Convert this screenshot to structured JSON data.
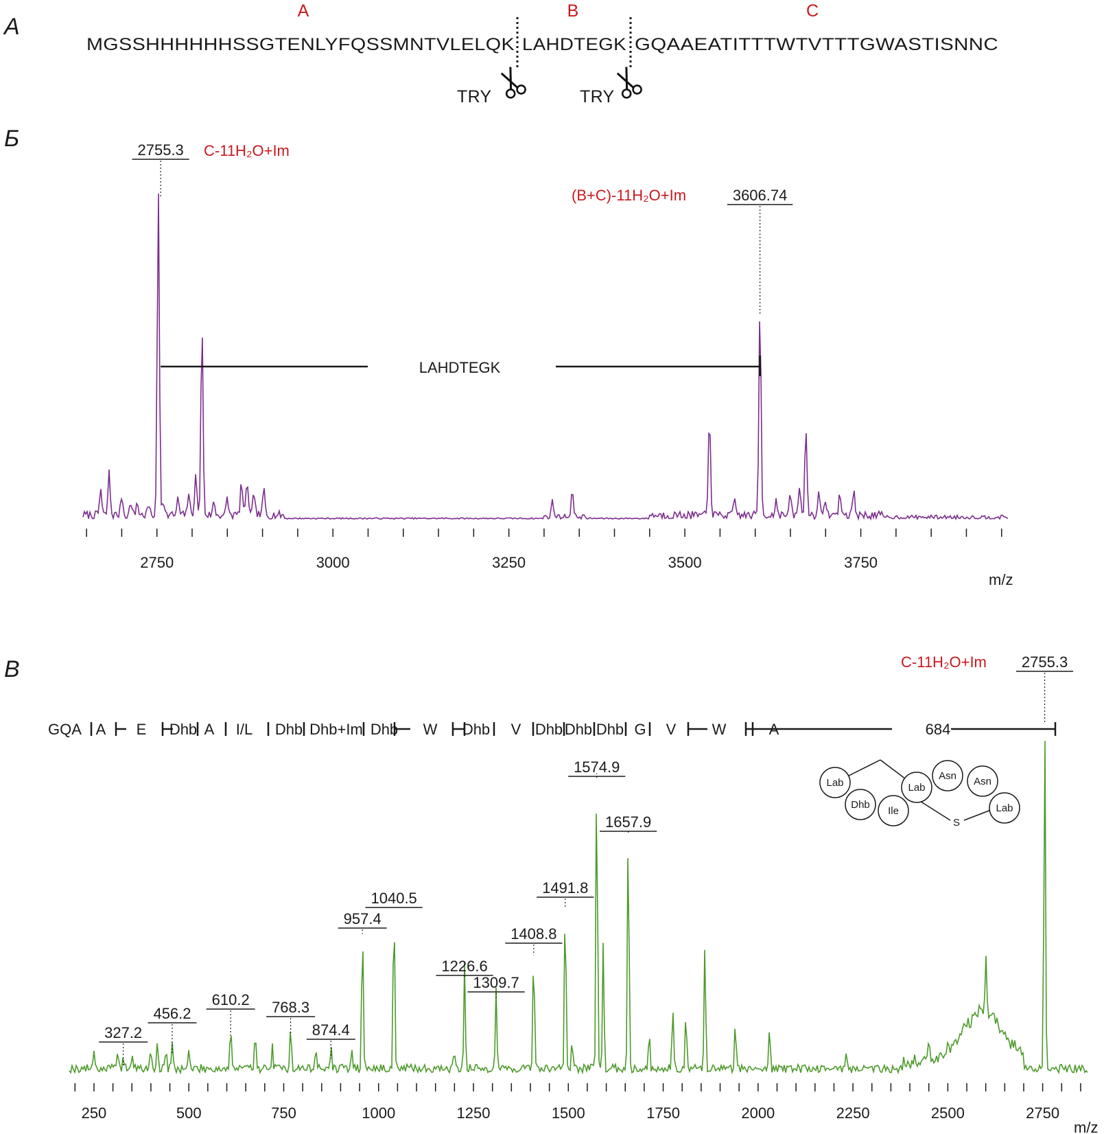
{
  "panel_a": {
    "letter": "A",
    "sequence": "MGSSHHHHHHSSGTENLYFQSSMNTVLELQK",
    "sequence_b": "LAHDTEGK",
    "sequence_c": "GQAAEATITTTWTVTTTGWASTISNNC",
    "region_a": "A",
    "region_b": "B",
    "region_c": "C",
    "cut_label_1": "TRY",
    "cut_label_2": "TRY"
  },
  "chart_data": [
    {
      "panel": "Б",
      "type": "line",
      "title": "",
      "xlabel": "m/z",
      "ylabel": "",
      "xlim": [
        2645,
        3960
      ],
      "ylim": [
        0,
        100
      ],
      "x_ticks": [
        2750,
        3000,
        3250,
        3500,
        3750
      ],
      "series": [
        {
          "color": "#7b2d8e",
          "peaks": [
            {
              "x": 2670,
              "y": 8
            },
            {
              "x": 2682,
              "y": 13
            },
            {
              "x": 2700,
              "y": 6
            },
            {
              "x": 2713,
              "y": 4
            },
            {
              "x": 2722,
              "y": 4
            },
            {
              "x": 2738,
              "y": 3
            },
            {
              "x": 2752,
              "y": 100
            },
            {
              "x": 2759,
              "y": 5
            },
            {
              "x": 2780,
              "y": 5
            },
            {
              "x": 2795,
              "y": 7
            },
            {
              "x": 2805,
              "y": 13
            },
            {
              "x": 2814,
              "y": 58
            },
            {
              "x": 2831,
              "y": 4
            },
            {
              "x": 2850,
              "y": 5
            },
            {
              "x": 2870,
              "y": 10
            },
            {
              "x": 2878,
              "y": 11
            },
            {
              "x": 2888,
              "y": 7
            },
            {
              "x": 2902,
              "y": 8
            },
            {
              "x": 3312,
              "y": 5
            },
            {
              "x": 3340,
              "y": 8
            },
            {
              "x": 3535,
              "y": 31
            },
            {
              "x": 3571,
              "y": 5
            },
            {
              "x": 3606.74,
              "y": 64
            },
            {
              "x": 3630,
              "y": 5
            },
            {
              "x": 3650,
              "y": 6
            },
            {
              "x": 3663,
              "y": 9
            },
            {
              "x": 3672,
              "y": 27
            },
            {
              "x": 3690,
              "y": 7
            },
            {
              "x": 3700,
              "y": 5
            },
            {
              "x": 3720,
              "y": 7
            },
            {
              "x": 3740,
              "y": 8
            }
          ]
        }
      ],
      "labeled_peaks": [
        {
          "x": 2755.3,
          "y": 100,
          "label": "2755.3"
        },
        {
          "x": 3606.74,
          "y": 64,
          "label": "3606.74"
        }
      ],
      "annotations": [
        {
          "text": "C-11H₂O+Im"
        },
        {
          "text": "(B+C)-11H₂O+Im"
        },
        {
          "text": "LAHDTEGK",
          "from": 2755.3,
          "to": 3606.74
        }
      ]
    },
    {
      "panel": "В",
      "type": "line",
      "title": "",
      "xlabel": "m/z",
      "ylabel": "",
      "xlim": [
        185,
        2870
      ],
      "ylim": [
        0,
        100
      ],
      "x_ticks": [
        250,
        500,
        750,
        1000,
        1250,
        1500,
        1750,
        2000,
        2250,
        2500,
        2750
      ],
      "series": [
        {
          "color": "#4c9a2a",
          "peaks": [
            {
              "x": 250,
              "y": 6
            },
            {
              "x": 312,
              "y": 5
            },
            {
              "x": 327.2,
              "y": 4
            },
            {
              "x": 350,
              "y": 4
            },
            {
              "x": 400,
              "y": 5
            },
            {
              "x": 417,
              "y": 7
            },
            {
              "x": 440,
              "y": 5
            },
            {
              "x": 456.2,
              "y": 7
            },
            {
              "x": 500,
              "y": 5
            },
            {
              "x": 610.2,
              "y": 12
            },
            {
              "x": 675,
              "y": 12
            },
            {
              "x": 720,
              "y": 6
            },
            {
              "x": 768.3,
              "y": 13
            },
            {
              "x": 835,
              "y": 6
            },
            {
              "x": 874.4,
              "y": 6
            },
            {
              "x": 930,
              "y": 6
            },
            {
              "x": 957.4,
              "y": 41
            },
            {
              "x": 1040.5,
              "y": 48
            },
            {
              "x": 1200,
              "y": 5
            },
            {
              "x": 1226.6,
              "y": 30
            },
            {
              "x": 1309.7,
              "y": 23
            },
            {
              "x": 1408.8,
              "y": 35
            },
            {
              "x": 1491.8,
              "y": 48
            },
            {
              "x": 1510,
              "y": 9
            },
            {
              "x": 1574.9,
              "y": 86
            },
            {
              "x": 1592,
              "y": 35
            },
            {
              "x": 1657.9,
              "y": 70
            },
            {
              "x": 1713,
              "y": 10
            },
            {
              "x": 1775,
              "y": 19
            },
            {
              "x": 1810,
              "y": 17
            },
            {
              "x": 1860,
              "y": 35
            },
            {
              "x": 1940,
              "y": 14
            },
            {
              "x": 2030,
              "y": 12
            },
            {
              "x": 2233,
              "y": 5
            },
            {
              "x": 2450,
              "y": 7
            },
            {
              "x": 2600,
              "y": 17
            },
            {
              "x": 2755.3,
              "y": 100
            }
          ]
        }
      ],
      "labeled_peaks": [
        {
          "x": 327.2,
          "y": 4,
          "label": "327.2"
        },
        {
          "x": 456.2,
          "y": 7,
          "label": "456.2"
        },
        {
          "x": 610.2,
          "y": 12,
          "label": "610.2"
        },
        {
          "x": 768.3,
          "y": 13,
          "label": "768.3"
        },
        {
          "x": 874.4,
          "y": 6,
          "label": "874.4"
        },
        {
          "x": 957.4,
          "y": 41,
          "label": "957.4"
        },
        {
          "x": 1040.5,
          "y": 48,
          "label": "1040.5"
        },
        {
          "x": 1226.6,
          "y": 30,
          "label": "1226.6"
        },
        {
          "x": 1309.7,
          "y": 23,
          "label": "1309.7"
        },
        {
          "x": 1408.8,
          "y": 35,
          "label": "1408.8"
        },
        {
          "x": 1491.8,
          "y": 48,
          "label": "1491.8"
        },
        {
          "x": 1574.9,
          "y": 86,
          "label": "1574.9"
        },
        {
          "x": 1657.9,
          "y": 70,
          "label": "1657.9"
        },
        {
          "x": 2755.3,
          "y": 100,
          "label": "2755.3"
        }
      ],
      "annotations": [
        {
          "text": "C-11H₂O+Im"
        }
      ],
      "ladder": [
        "GQA",
        "A",
        "E",
        "Dhb",
        "A",
        "I/L",
        "Dhb",
        "Dhb+Im",
        "Dhb",
        "W",
        "Dhb",
        "V",
        "Dhb",
        "Dhb",
        "Dhb",
        "G",
        "V",
        "W",
        "A",
        "684"
      ],
      "structure": {
        "nodes": [
          "Lab",
          "Dhb",
          "Ile",
          "Lab",
          "Asn",
          "Asn",
          "Lab"
        ],
        "bridge": "S"
      }
    }
  ],
  "panel_b": {
    "letter": "Б",
    "unit": "m/z"
  },
  "panel_c": {
    "letter": "В",
    "unit": "m/z"
  }
}
